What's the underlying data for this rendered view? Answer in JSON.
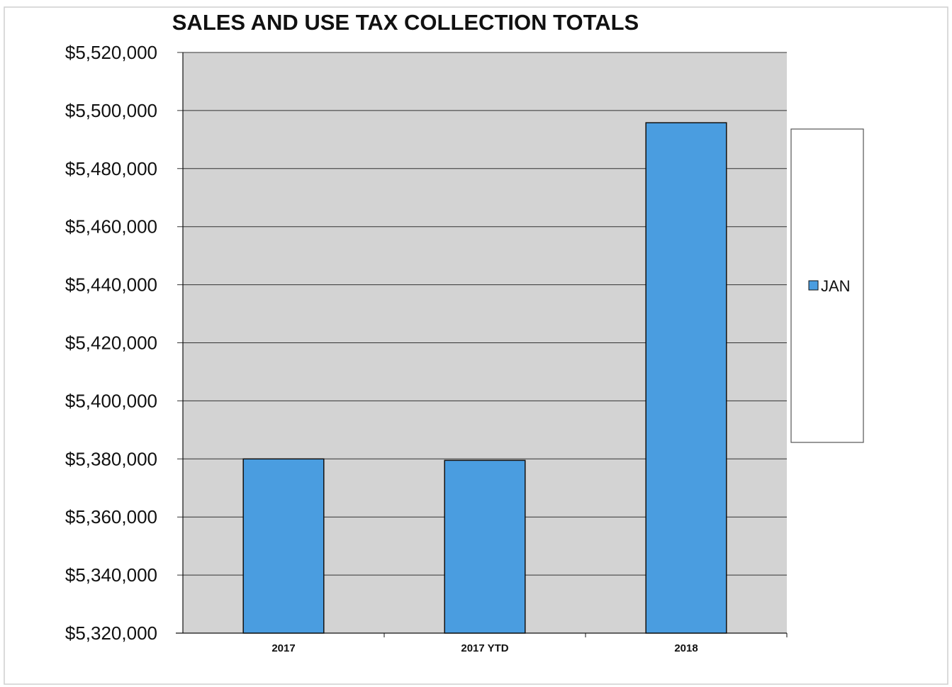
{
  "chart_data": {
    "type": "bar",
    "title": "SALES AND USE TAX COLLECTION TOTALS",
    "categories": [
      "2017",
      "2017 YTD",
      "2018"
    ],
    "series": [
      {
        "name": "JAN",
        "values": [
          5380000,
          5379500,
          5495800
        ]
      }
    ],
    "ylim": [
      5320000,
      5520000
    ],
    "yticks": [
      5320000,
      5340000,
      5360000,
      5380000,
      5400000,
      5420000,
      5440000,
      5460000,
      5480000,
      5500000,
      5520000
    ],
    "ytick_labels": [
      "$5,320,000",
      "$5,340,000",
      "$5,360,000",
      "$5,380,000",
      "$5,400,000",
      "$5,420,000",
      "$5,440,000",
      "$5,460,000",
      "$5,480,000",
      "$5,500,000",
      "$5,520,000"
    ],
    "xlabel": "",
    "ylabel": "",
    "grid": true,
    "legend_position": "right",
    "colors": {
      "bar": "#4a9de0",
      "bar_edge": "#111111",
      "plot_bg": "#d3d3d3",
      "gridline": "#333333"
    }
  }
}
